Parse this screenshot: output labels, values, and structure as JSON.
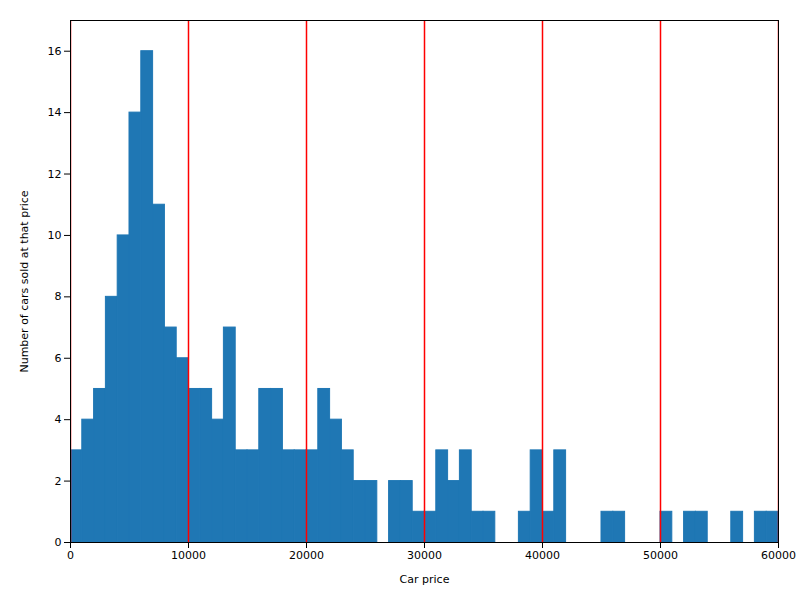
{
  "chart_data": {
    "type": "histogram",
    "xlabel": "Car price",
    "ylabel": "Number of cars sold at that price",
    "bins": [
      0,
      1000,
      2000,
      3000,
      4000,
      5000,
      6000,
      7000,
      8000,
      9000,
      10000,
      11000,
      12000,
      13000,
      14000,
      15000,
      16000,
      17000,
      18000,
      19000,
      20000,
      21000,
      22000,
      23000,
      24000,
      25000,
      26000,
      27000,
      28000,
      29000,
      30000,
      31000,
      32000,
      33000,
      34000,
      35000,
      36000,
      37000,
      38000,
      39000,
      40000,
      41000,
      42000,
      43000,
      44000,
      45000,
      46000,
      47000,
      48000,
      49000,
      50000,
      51000,
      52000,
      53000,
      54000,
      55000,
      56000,
      57000,
      58000,
      59000,
      60000
    ],
    "values": [
      3,
      4,
      5,
      8,
      10,
      14,
      16,
      11,
      7,
      6,
      5,
      5,
      4,
      7,
      3,
      3,
      5,
      5,
      3,
      3,
      3,
      5,
      4,
      3,
      2,
      2,
      0,
      2,
      2,
      1,
      1,
      3,
      2,
      3,
      1,
      1,
      0,
      0,
      1,
      3,
      1,
      3,
      0,
      0,
      0,
      1,
      1,
      0,
      0,
      0,
      1,
      0,
      1,
      1,
      0,
      0,
      1,
      0,
      1,
      1
    ],
    "color": "#1f77b4",
    "vlines": {
      "x": [
        0,
        10000,
        20000,
        30000,
        40000,
        50000,
        60000
      ],
      "color": "red"
    },
    "xlim": [
      0,
      60000
    ],
    "ylim": [
      0,
      17
    ],
    "xticks": [
      0,
      10000,
      20000,
      30000,
      40000,
      50000,
      60000
    ],
    "yticks": [
      0,
      2,
      4,
      6,
      8,
      10,
      12,
      14,
      16
    ],
    "grid": false
  }
}
